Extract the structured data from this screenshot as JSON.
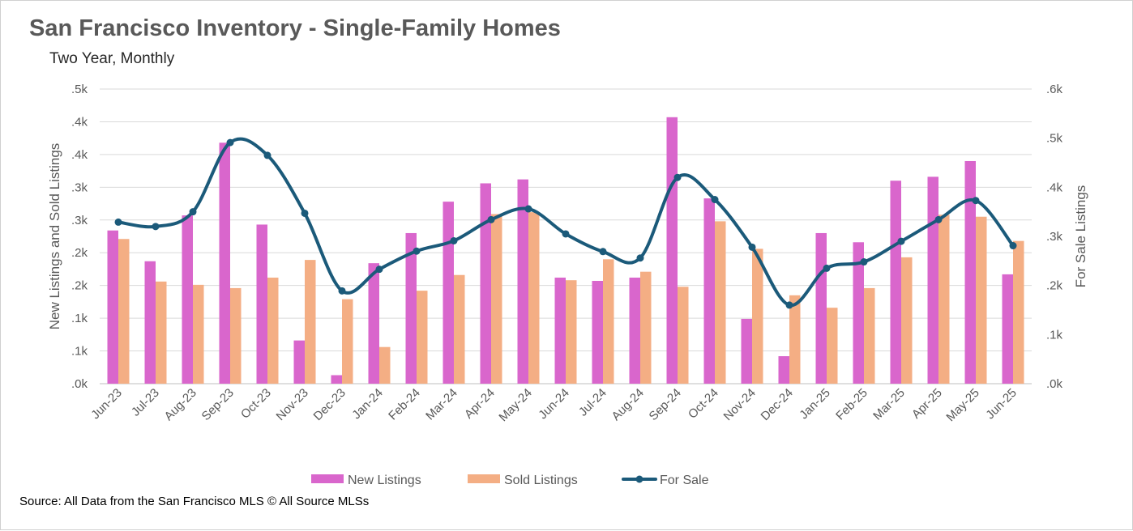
{
  "title": "San Francisco  Inventory - Single-Family Homes",
  "subtitle": "Two Year, Monthly",
  "source": "Source: All Data from the San Francisco MLS © All Source MLSs",
  "chart_data": {
    "type": "bar+line",
    "categories": [
      "Jun-23",
      "Jul-23",
      "Aug-23",
      "Sep-23",
      "Oct-23",
      "Nov-23",
      "Dec-23",
      "Jan-24",
      "Feb-24",
      "Mar-24",
      "Apr-24",
      "May-24",
      "Jun-24",
      "Jul-24",
      "Aug-24",
      "Sep-24",
      "Oct-24",
      "Nov-24",
      "Dec-24",
      "Jan-25",
      "Feb-25",
      "Mar-25",
      "Apr-25",
      "May-25",
      "Jun-25"
    ],
    "left_axis": {
      "label": "New Listings and Sold Listings",
      "ticks": [
        ".0k",
        ".1k",
        ".1k",
        ".2k",
        ".2k",
        ".3k",
        ".3k",
        ".4k",
        ".4k",
        ".5k"
      ],
      "ylim": [
        0,
        0.45
      ]
    },
    "right_axis": {
      "label": "For Sale Listings",
      "ticks": [
        ".0k",
        ".1k",
        ".2k",
        ".3k",
        ".4k",
        ".5k",
        ".6k"
      ],
      "ylim": [
        0,
        0.6
      ]
    },
    "series": [
      {
        "name": "New Listings",
        "type": "bar",
        "axis": "left",
        "color": "#D966CC",
        "values": [
          0.234,
          0.187,
          0.257,
          0.368,
          0.243,
          0.066,
          0.013,
          0.184,
          0.23,
          0.278,
          0.306,
          0.312,
          0.162,
          0.157,
          0.162,
          0.407,
          0.283,
          0.099,
          0.042,
          0.23,
          0.216,
          0.31,
          0.316,
          0.34,
          0.167
        ]
      },
      {
        "name": "Sold Listings",
        "type": "bar",
        "axis": "left",
        "color": "#F4AE84",
        "values": [
          0.221,
          0.156,
          0.151,
          0.146,
          0.162,
          0.189,
          0.129,
          0.056,
          0.142,
          0.166,
          0.259,
          0.262,
          0.158,
          0.19,
          0.171,
          0.148,
          0.248,
          0.206,
          0.135,
          0.116,
          0.146,
          0.193,
          0.258,
          0.255,
          0.218
        ]
      },
      {
        "name": "For Sale",
        "type": "line",
        "axis": "right",
        "color": "#1B5A7A",
        "values": [
          0.329,
          0.32,
          0.35,
          0.491,
          0.465,
          0.347,
          0.189,
          0.233,
          0.27,
          0.291,
          0.334,
          0.356,
          0.305,
          0.269,
          0.256,
          0.42,
          0.375,
          0.278,
          0.16,
          0.235,
          0.248,
          0.29,
          0.334,
          0.373,
          0.281
        ]
      }
    ],
    "legend": "bottom",
    "grid": true
  }
}
